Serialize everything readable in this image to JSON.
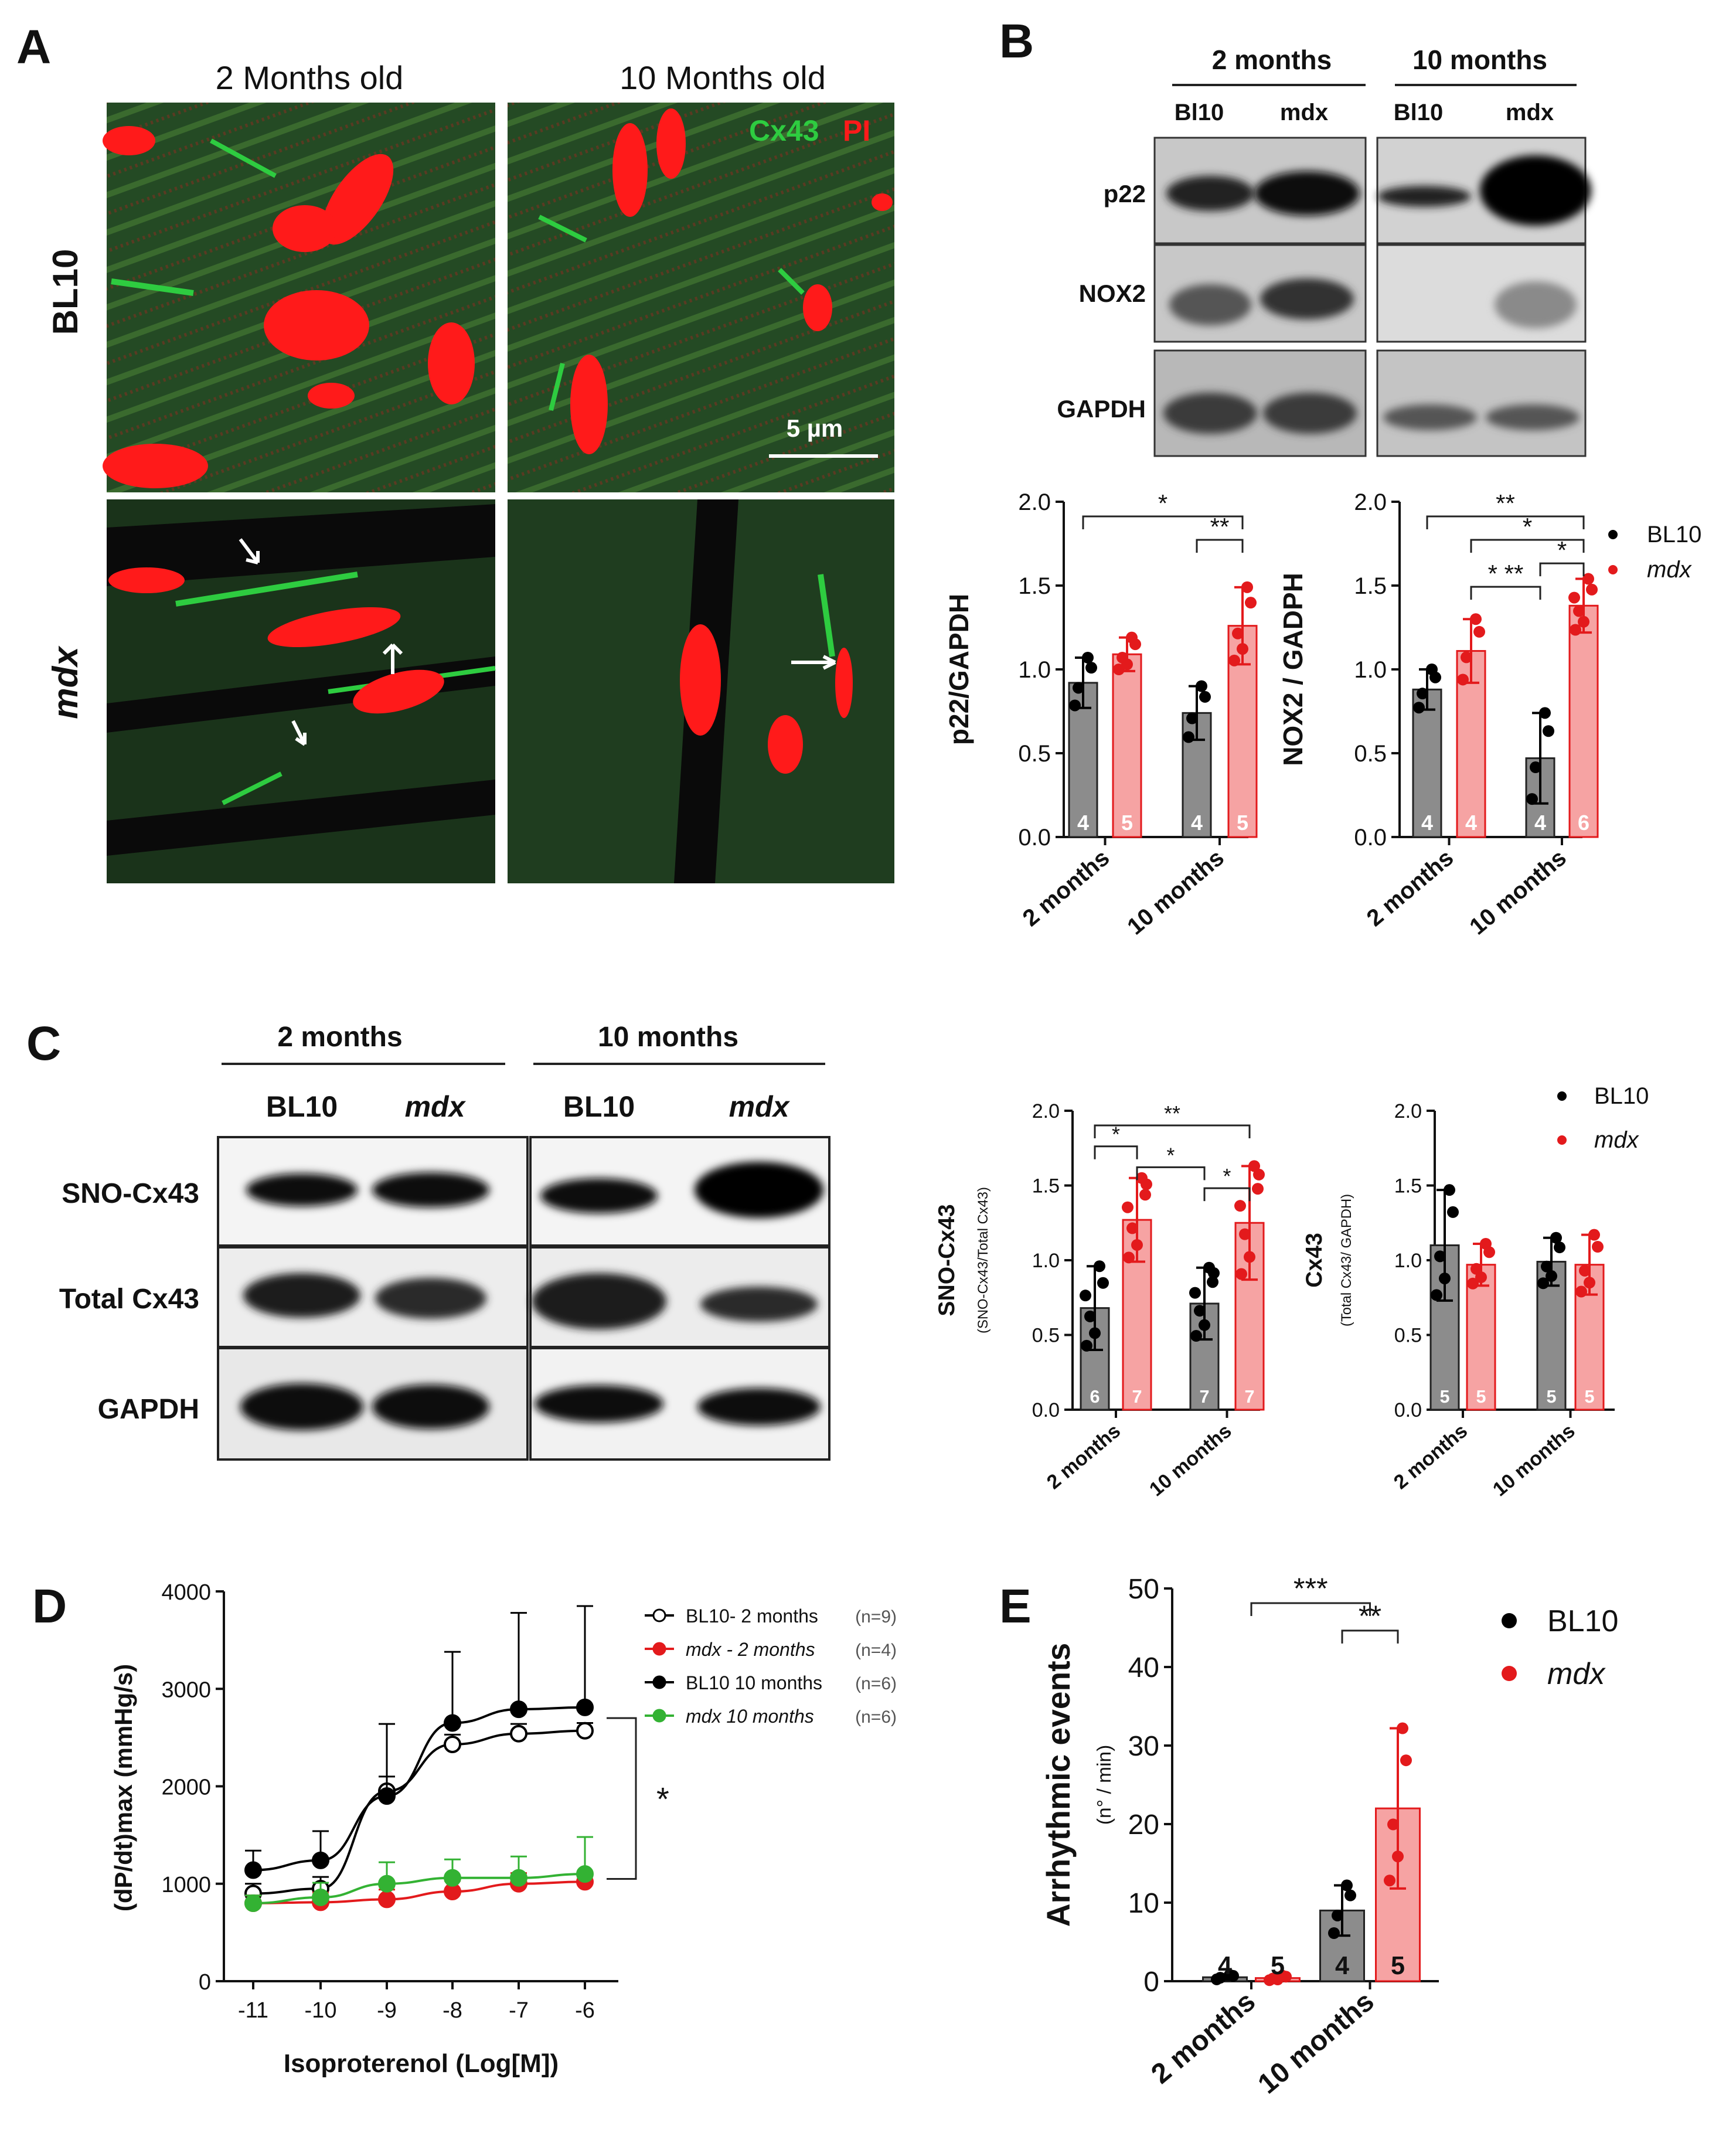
{
  "colors": {
    "bl10": "#8c8c8c",
    "bl10_dot": "#000000",
    "mdx": "#f6a3a3",
    "mdx_dot": "#e31a1c",
    "mdx10_green": "#33b233",
    "micrograph_red": "#ff1a1a",
    "micrograph_green": "#2ecc40",
    "micrograph_bg": "#1f3d1f"
  },
  "panelA": {
    "letter": "A",
    "col_labels": [
      "2 Months old",
      "10 Months old"
    ],
    "row_labels": [
      "BL10",
      "mdx"
    ],
    "stain_labels": [
      "Cx43",
      "PI"
    ],
    "scale_bar": "5 µm"
  },
  "panelB": {
    "letter": "B",
    "group_headers": [
      "2 months",
      "10 months"
    ],
    "lane_labels": [
      "Bl10",
      "mdx",
      "Bl10",
      "mdx"
    ],
    "blot_rows": [
      "p22",
      "NOX2",
      "GAPDH"
    ],
    "legend": [
      "BL10",
      "mdx"
    ]
  },
  "panelC": {
    "letter": "C",
    "group_headers": [
      "2 months",
      "10 months"
    ],
    "lane_labels": [
      "BL10",
      "mdx",
      "BL10",
      "mdx"
    ],
    "blot_rows": [
      "SNO-Cx43",
      "Total Cx43",
      "GAPDH"
    ],
    "legend": [
      "BL10",
      "mdx"
    ]
  },
  "panelD": {
    "letter": "D",
    "bracket_sig": "*"
  },
  "panelE": {
    "letter": "E",
    "legend": [
      "BL10",
      "mdx"
    ]
  },
  "chart_data": [
    {
      "id": "B_p22",
      "type": "bar",
      "categories": [
        "2 months",
        "10 months"
      ],
      "ylabel": "p22/GAPDH",
      "ylim": [
        0,
        2.0
      ],
      "yticks": [
        "0.0",
        "0.5",
        "1.0",
        "1.5",
        "2.0"
      ],
      "series": [
        {
          "name": "BL10",
          "values": [
            0.92,
            0.74
          ],
          "sd": [
            0.15,
            0.16
          ],
          "n": [
            "4",
            "4"
          ]
        },
        {
          "name": "mdx",
          "values": [
            1.09,
            1.26
          ],
          "sd": [
            0.1,
            0.23
          ],
          "n": [
            "5",
            "5"
          ]
        }
      ],
      "significance": [
        {
          "label": "*",
          "between": [
            "2 months BL10",
            "10 months mdx"
          ]
        },
        {
          "label": "**",
          "between": [
            "10 months BL10",
            "10 months mdx"
          ]
        }
      ]
    },
    {
      "id": "B_nox2",
      "type": "bar",
      "categories": [
        "2 months",
        "10 months"
      ],
      "ylabel": "NOX2 / GADPH",
      "ylim": [
        0,
        2.0
      ],
      "yticks": [
        "0.0",
        "0.5",
        "1.0",
        "1.5",
        "2.0"
      ],
      "series": [
        {
          "name": "BL10",
          "values": [
            0.88,
            0.47
          ],
          "sd": [
            0.12,
            0.27
          ],
          "n": [
            "4",
            "4"
          ]
        },
        {
          "name": "mdx",
          "values": [
            1.11,
            1.38
          ],
          "sd": [
            0.19,
            0.16
          ],
          "n": [
            "4",
            "6"
          ]
        }
      ],
      "significance": [
        {
          "label": "**",
          "between": [
            "2 months BL10",
            "10 months mdx"
          ]
        },
        {
          "label": "*",
          "between": [
            "2 months mdx",
            "10 months mdx"
          ]
        },
        {
          "label": "*",
          "between": [
            "10 months BL10",
            "10 months mdx"
          ]
        },
        {
          "label": "* **",
          "between": [
            "2 months mdx",
            "10 months BL10"
          ]
        }
      ]
    },
    {
      "id": "C_sno",
      "type": "bar",
      "categories": [
        "2 months",
        "10 months"
      ],
      "ylabel": "SNO-Cx43",
      "ylabel_sub": "(SNO-Cx43/Total Cx43)",
      "ylim": [
        0,
        2.0
      ],
      "yticks": [
        "0.0",
        "0.5",
        "1.0",
        "1.5",
        "2.0"
      ],
      "series": [
        {
          "name": "BL10",
          "values": [
            0.68,
            0.71
          ],
          "sd": [
            0.28,
            0.24
          ],
          "n": [
            "6",
            "7"
          ]
        },
        {
          "name": "mdx",
          "values": [
            1.27,
            1.25
          ],
          "sd": [
            0.28,
            0.38
          ],
          "n": [
            "7",
            "7"
          ]
        }
      ],
      "significance": [
        {
          "label": "**",
          "between": [
            "2 months BL10",
            "10 months mdx"
          ]
        },
        {
          "label": "*",
          "between": [
            "2 months BL10",
            "2 months mdx"
          ]
        },
        {
          "label": "*",
          "between": [
            "2 months mdx",
            "10 months BL10"
          ]
        },
        {
          "label": "*",
          "between": [
            "10 months BL10",
            "10 months mdx"
          ]
        }
      ]
    },
    {
      "id": "C_cx43",
      "type": "bar",
      "categories": [
        "2 months",
        "10 months"
      ],
      "ylabel": "Cx43",
      "ylabel_sub": "(Total Cx43/ GAPDH)",
      "ylim": [
        0,
        2.0
      ],
      "yticks": [
        "0.0",
        "0.5",
        "1.0",
        "1.5",
        "2.0"
      ],
      "series": [
        {
          "name": "BL10",
          "values": [
            1.1,
            0.99
          ],
          "sd": [
            0.37,
            0.16
          ],
          "n": [
            "5",
            "5"
          ]
        },
        {
          "name": "mdx",
          "values": [
            0.97,
            0.97
          ],
          "sd": [
            0.14,
            0.2
          ],
          "n": [
            "5",
            "5"
          ]
        }
      ]
    },
    {
      "id": "D_dose",
      "type": "line",
      "x": [
        -11,
        -10,
        -9,
        -8,
        -7,
        -6
      ],
      "xticks": [
        "-11",
        "-10",
        "-9",
        "-8",
        "-7",
        "-6"
      ],
      "xlabel": "Isoproterenol (Log[M])",
      "ylabel": "(dP/dt)max (mmHg/s)",
      "ylim": [
        0,
        4000
      ],
      "yticks": [
        "0",
        "1000",
        "2000",
        "3000",
        "4000"
      ],
      "series": [
        {
          "name": "BL10- 2 months",
          "n_label": "(n=9)",
          "values": [
            900,
            950,
            1950,
            2430,
            2540,
            2570
          ],
          "sd": [
            100,
            120,
            150,
            100,
            100,
            80
          ],
          "marker": "open",
          "color": "#000000"
        },
        {
          "name": "mdx - 2 months",
          "n_label": "(n=4)",
          "values": [
            800,
            810,
            840,
            920,
            1000,
            1020
          ],
          "sd": [
            80,
            100,
            100,
            110,
            110,
            80
          ],
          "marker": "filled",
          "color": "#e31a1c"
        },
        {
          "name": "BL10 10 months",
          "n_label": "(n=6)",
          "values": [
            1140,
            1240,
            1900,
            2650,
            2790,
            2810
          ],
          "sd": [
            200,
            300,
            740,
            730,
            990,
            1040
          ],
          "marker": "filled",
          "color": "#000000"
        },
        {
          "name": "mdx 10 months",
          "n_label": "(n=6)",
          "values": [
            800,
            860,
            1000,
            1060,
            1060,
            1100
          ],
          "sd": [
            80,
            150,
            220,
            190,
            220,
            380
          ],
          "marker": "filled",
          "color": "#33b233"
        }
      ]
    },
    {
      "id": "E_arrhythmia",
      "type": "bar",
      "categories": [
        "2 months",
        "10 months"
      ],
      "ylabel": "Arrhythmic events",
      "ylabel_sub": "(n° / min)",
      "ylim": [
        0,
        50
      ],
      "yticks": [
        "0",
        "10",
        "20",
        "30",
        "40",
        "50"
      ],
      "series": [
        {
          "name": "BL10",
          "values": [
            0.5,
            9.0
          ],
          "sd": [
            0.3,
            3.2
          ],
          "n": [
            "4",
            "4"
          ]
        },
        {
          "name": "mdx",
          "values": [
            0.4,
            22.0
          ],
          "sd": [
            0.3,
            10.2
          ],
          "n": [
            "5",
            "5"
          ]
        }
      ],
      "significance": [
        {
          "label": "***",
          "between": [
            "2 months",
            "10 months"
          ]
        },
        {
          "label": "**",
          "between": [
            "10 months BL10",
            "10 months mdx"
          ]
        }
      ]
    }
  ]
}
